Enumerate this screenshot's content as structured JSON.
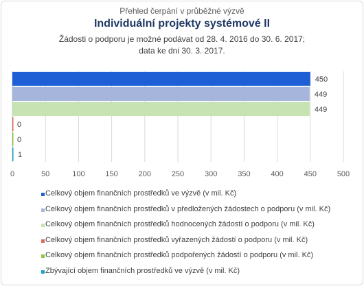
{
  "header": {
    "overline": "Přehled čerpání v průběžné výzvě",
    "title": "Individuální projekty systémové II",
    "subtitle_line1": "Žádosti o podporu je možné podávat od 28. 4. 2016 do 30. 6. 2017;",
    "subtitle_line2": "data ke dni 30. 3. 2017."
  },
  "chart_data": {
    "type": "bar",
    "orientation": "horizontal",
    "xlim": [
      0,
      500
    ],
    "x_ticks": [
      "0",
      "50",
      "100",
      "150",
      "200",
      "250",
      "300",
      "350",
      "400",
      "450",
      "500"
    ],
    "grid": "vertical",
    "legend_position": "bottom",
    "series": [
      {
        "name": "Celkový objem finančních prostředků ve výzvě (v mil. Kč)",
        "value": 450,
        "label": "450",
        "color": "#1f5fd6"
      },
      {
        "name": "Celkový objem finančních prostředků v předložených žádostech o podporu (v mil. Kč)",
        "value": 449,
        "label": "449",
        "color": "#a5b5dc"
      },
      {
        "name": "Celkový objem finančních prostředků hodnocených žádostí o podporu (v mil. Kč)",
        "value": 449,
        "label": "449",
        "color": "#c7e2b3"
      },
      {
        "name": "Celkový objem finančních prostředků vyřazených žádostí o podporu (v mil. Kč)",
        "value": 0,
        "label": "0",
        "color": "#e06666"
      },
      {
        "name": "Celkový objem finančních prostředků podpořených žádostí o podporu (v mil. Kč)",
        "value": 0,
        "label": "0",
        "color": "#8dc63f"
      },
      {
        "name": "Zbývající objem finančních prostředků ve výzvě (v mil. Kč)",
        "value": 1,
        "label": "1",
        "color": "#1aa3c8"
      }
    ]
  }
}
